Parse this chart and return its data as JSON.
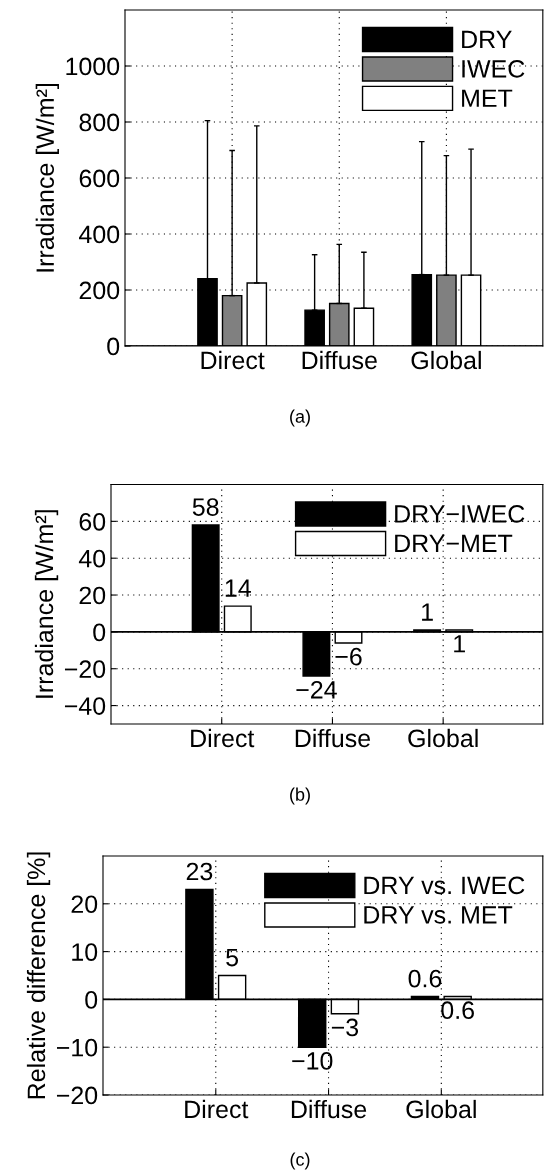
{
  "chart_data": [
    {
      "type": "bar",
      "categories": [
        "Direct",
        "Diffuse",
        "Global"
      ],
      "ylabel": "Irradiance [W/m²]",
      "ylim": [
        0,
        1200
      ],
      "yticks": [
        0,
        200,
        400,
        600,
        800,
        1000
      ],
      "grid": true,
      "legend": "top right",
      "annotations": [
        "(a)"
      ],
      "series": [
        {
          "name": "DRY",
          "color": "#000000",
          "values": [
            240,
            128,
            255
          ],
          "errors": [
            [
              240,
              805
            ],
            [
              128,
              326
            ],
            [
              255,
              730
            ]
          ]
        },
        {
          "name": "IWEC",
          "color": "#808080",
          "values": [
            180,
            152,
            253
          ],
          "errors": [
            [
              180,
              698
            ],
            [
              152,
              363
            ],
            [
              253,
              680
            ]
          ]
        },
        {
          "name": "MET",
          "color": "#ffffff",
          "values": [
            225,
            135,
            253
          ],
          "errors": [
            [
              225,
              786
            ],
            [
              135,
              335
            ],
            [
              253,
              703
            ]
          ]
        }
      ]
    },
    {
      "type": "bar",
      "categories": [
        "Direct",
        "Diffuse",
        "Global"
      ],
      "ylabel": "Irradiance [W/m²]",
      "ylim": [
        -50,
        80
      ],
      "yticks": [
        {
          "value": -40,
          "label": "−40"
        },
        {
          "value": -20,
          "label": "−20"
        },
        0,
        20,
        40,
        60
      ],
      "grid": true,
      "legend": "top right",
      "data_labels": true,
      "annotations": [
        "(b)"
      ],
      "series": [
        {
          "name": "DRY−IWEC",
          "color": "#000000",
          "values": [
            58,
            -24,
            1
          ],
          "value_labels": [
            "58",
            "−24",
            "1"
          ]
        },
        {
          "name": "DRY−MET",
          "color": "#ffffff",
          "values": [
            14,
            -6,
            1
          ],
          "value_labels": [
            "14",
            "−6",
            "1"
          ]
        }
      ]
    },
    {
      "type": "bar",
      "categories": [
        "Direct",
        "Diffuse",
        "Global"
      ],
      "ylabel": "Relative difference [%]",
      "ylim": [
        -20,
        30
      ],
      "yticks": [
        {
          "value": -20,
          "label": "−20"
        },
        {
          "value": -10,
          "label": "−10"
        },
        0,
        10,
        20
      ],
      "grid": true,
      "legend": "top right",
      "data_labels": true,
      "annotations": [
        "(c)"
      ],
      "series": [
        {
          "name": "DRY vs. IWEC",
          "color": "#000000",
          "values": [
            23,
            -10,
            0.6
          ],
          "value_labels": [
            "23",
            "−10",
            "0.6"
          ]
        },
        {
          "name": "DRY vs. MET",
          "color": "#ffffff",
          "values": [
            5,
            -3,
            0.6
          ],
          "value_labels": [
            "5",
            "−3",
            "0.6"
          ]
        }
      ]
    }
  ]
}
